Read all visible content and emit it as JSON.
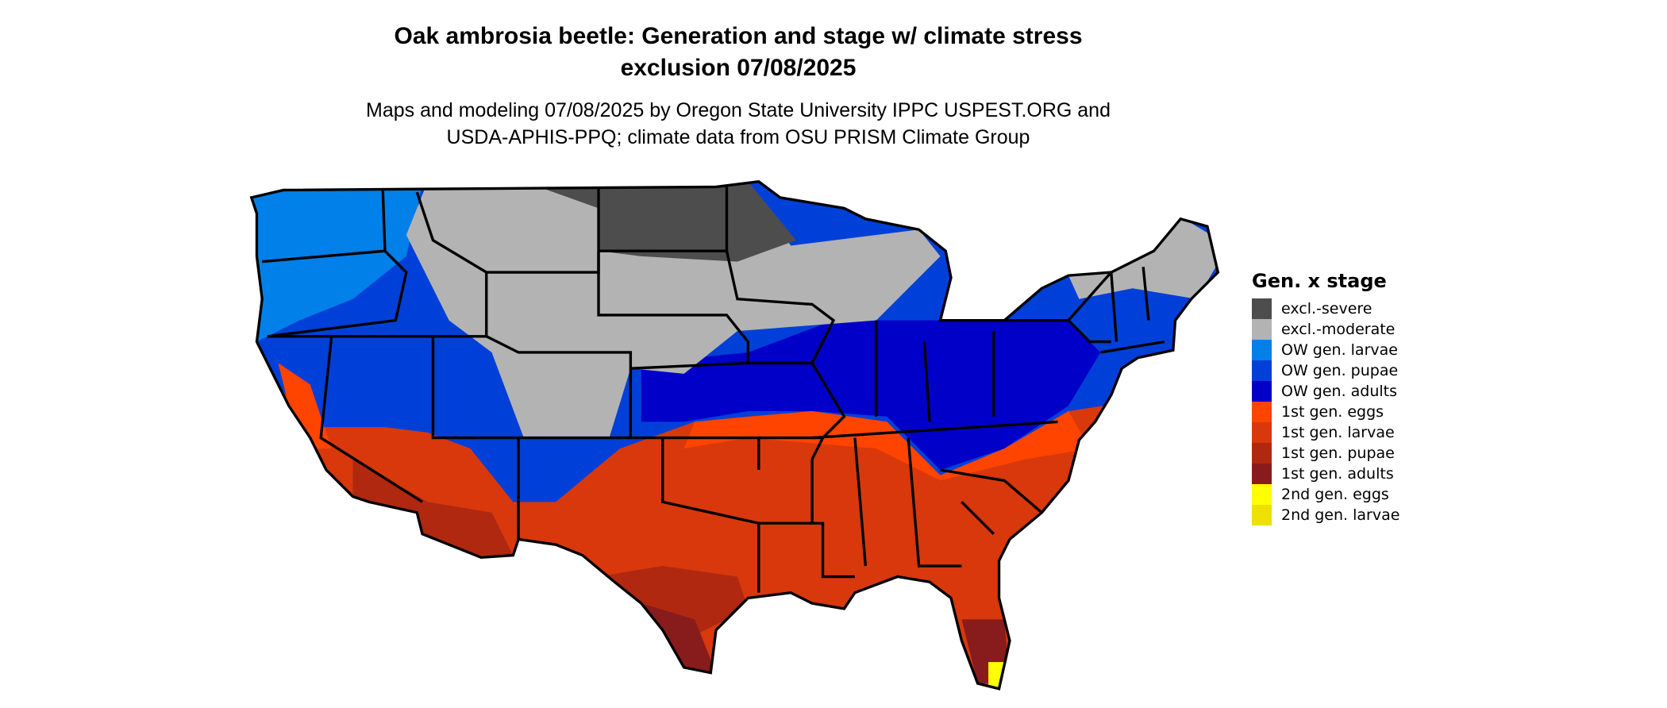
{
  "title_line1": "Oak ambrosia beetle: Generation and stage w/ climate stress",
  "title_line2": "exclusion 07/08/2025",
  "subtitle_line1": "Maps and modeling 07/08/2025 by Oregon State University IPPC USPEST.ORG and",
  "subtitle_line2": "USDA-APHIS-PPQ; climate data from OSU PRISM Climate Group",
  "legend": {
    "title": "Gen. x stage",
    "items": [
      {
        "label": "excl.-severe",
        "color": "#4d4d4d"
      },
      {
        "label": "excl.-moderate",
        "color": "#b3b3b3"
      },
      {
        "label": "OW gen. larvae",
        "color": "#0080e8"
      },
      {
        "label": "OW gen. pupae",
        "color": "#0040d8"
      },
      {
        "label": "OW gen. adults",
        "color": "#0000c8"
      },
      {
        "label": "1st gen. eggs",
        "color": "#ff4400"
      },
      {
        "label": "1st gen. larvae",
        "color": "#d8380c"
      },
      {
        "label": "1st gen. pupae",
        "color": "#b02810"
      },
      {
        "label": "1st gen. adults",
        "color": "#881c1c"
      },
      {
        "label": "2nd gen. eggs",
        "color": "#ffff00"
      },
      {
        "label": "2nd gen. larvae",
        "color": "#eee000"
      }
    ]
  }
}
